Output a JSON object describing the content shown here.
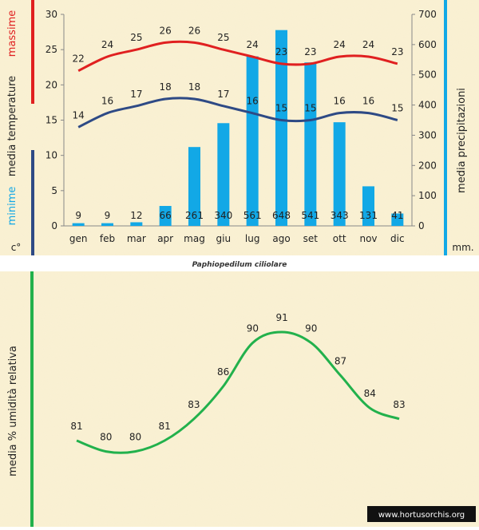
{
  "caption": "Paphiopedilum ciliolare",
  "watermark": "www.hortusorchis.org",
  "colors": {
    "panel_bg": "#FAF1D4",
    "max_temp": "#E02020",
    "min_temp": "#2E4A85",
    "precip": "#12A8E6",
    "humidity": "#22B14C"
  },
  "chart_data": [
    {
      "type": "bar+line",
      "categories": [
        "gen",
        "feb",
        "mar",
        "apr",
        "mag",
        "giu",
        "lug",
        "ago",
        "set",
        "ott",
        "nov",
        "dic"
      ],
      "left_axis": {
        "ylim": [
          0,
          30
        ],
        "ticks": [
          "0",
          "5",
          "10",
          "15",
          "20",
          "25",
          "30"
        ],
        "label_max": "massime",
        "label_main": "media  temperature",
        "label_min": "minime",
        "unit": "c°"
      },
      "right_axis": {
        "ylim": [
          0,
          700
        ],
        "ticks": [
          "0",
          "100",
          "200",
          "300",
          "400",
          "500",
          "600",
          "700"
        ],
        "label": "media  precipitazioni",
        "unit": "mm."
      },
      "series": [
        {
          "name": "massime",
          "kind": "line",
          "axis": "left",
          "values": [
            22,
            24,
            25,
            26,
            26,
            25,
            24,
            23,
            23,
            24,
            24,
            23
          ]
        },
        {
          "name": "minime",
          "kind": "line",
          "axis": "left",
          "values": [
            14,
            16,
            17,
            18,
            18,
            17,
            16,
            15,
            15,
            16,
            16,
            15
          ]
        },
        {
          "name": "media precipitazioni",
          "kind": "bar",
          "axis": "right",
          "values": [
            9,
            9,
            12,
            66,
            261,
            340,
            561,
            648,
            541,
            343,
            131,
            41
          ],
          "labels": [
            "9",
            "9",
            "12",
            "66",
            "261",
            "340",
            "561",
            "648",
            "541",
            "343",
            "131",
            "41"
          ]
        }
      ]
    },
    {
      "type": "line",
      "ylabel": "media %  umidità relativa",
      "ylim": [
        70,
        95
      ],
      "series": [
        {
          "name": "umidità relativa",
          "values": [
            81,
            80,
            80,
            81,
            83,
            86,
            90,
            91,
            90,
            87,
            84,
            83
          ]
        }
      ]
    }
  ]
}
